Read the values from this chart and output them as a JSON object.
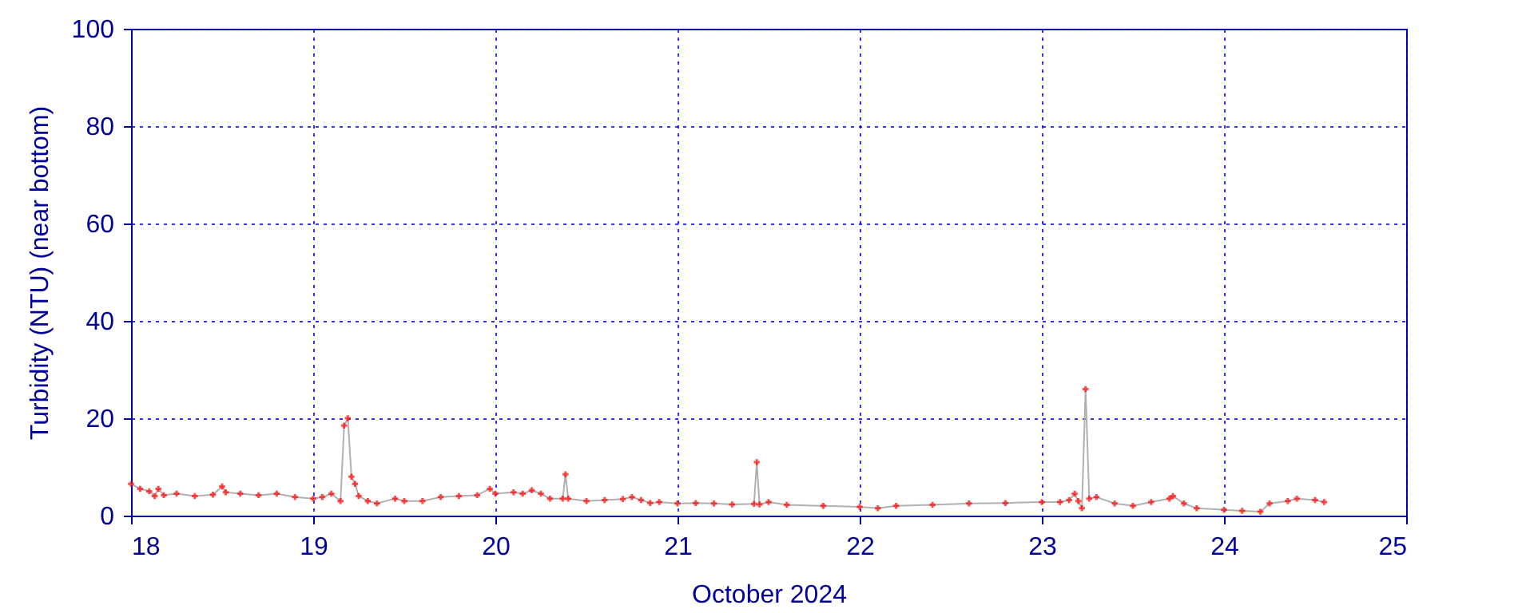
{
  "chart_data": {
    "type": "line",
    "xlabel": "October 2024",
    "ylabel": "Turbidity (NTU) (near bottom)",
    "xlim": [
      18,
      25
    ],
    "xticks": [
      18,
      19,
      20,
      21,
      22,
      23,
      24,
      25
    ],
    "ylim": [
      0,
      100
    ],
    "yticks": [
      0,
      20,
      40,
      60,
      80,
      100
    ],
    "grid": true,
    "marker": "cross",
    "line_style": "solid",
    "series": [
      {
        "color": "#ff0000",
        "x": [
          18.0,
          18.05,
          18.1,
          18.13,
          18.15,
          18.18,
          18.25,
          18.35,
          18.45,
          18.5,
          18.52,
          18.6,
          18.7,
          18.8,
          18.9,
          19.0,
          19.05,
          19.1,
          19.15,
          19.17,
          19.19,
          19.21,
          19.23,
          19.25,
          19.3,
          19.35,
          19.45,
          19.5,
          19.6,
          19.7,
          19.8,
          19.9,
          19.97,
          20.0,
          20.1,
          20.15,
          20.2,
          20.25,
          20.3,
          20.37,
          20.385,
          20.4,
          20.5,
          20.6,
          20.7,
          20.75,
          20.8,
          20.85,
          20.9,
          21.0,
          21.1,
          21.2,
          21.3,
          21.42,
          21.435,
          21.45,
          21.5,
          21.6,
          21.8,
          22.0,
          22.1,
          22.2,
          22.4,
          22.6,
          22.8,
          23.0,
          23.1,
          23.15,
          23.18,
          23.2,
          23.22,
          23.24,
          23.26,
          23.3,
          23.4,
          23.5,
          23.6,
          23.7,
          23.72,
          23.78,
          23.85,
          24.0,
          24.1,
          24.2,
          24.25,
          24.35,
          24.4,
          24.5,
          24.55
        ],
        "values": [
          6.5,
          5.5,
          5,
          4,
          5.5,
          4.2,
          4.5,
          4,
          4.3,
          6,
          4.8,
          4.5,
          4.2,
          4.5,
          3.8,
          3.5,
          3.8,
          4.5,
          3,
          18.5,
          20,
          8,
          6.5,
          4,
          3,
          2.5,
          3.5,
          3,
          3,
          3.8,
          4,
          4.2,
          5.5,
          4.5,
          4.8,
          4.5,
          5.2,
          4.5,
          3.5,
          3.5,
          8.5,
          3.5,
          3,
          3.2,
          3.4,
          3.8,
          3.2,
          2.6,
          2.8,
          2.5,
          2.6,
          2.5,
          2.3,
          2.4,
          11,
          2.3,
          2.8,
          2.2,
          2,
          1.8,
          1.5,
          2,
          2.2,
          2.5,
          2.6,
          2.8,
          2.8,
          3.2,
          4.5,
          3,
          1.5,
          26,
          3.5,
          3.8,
          2.5,
          2,
          2.8,
          3.5,
          4,
          2.5,
          1.5,
          1.2,
          1,
          0.8,
          2.5,
          3,
          3.5,
          3.2,
          2.8
        ]
      }
    ]
  }
}
